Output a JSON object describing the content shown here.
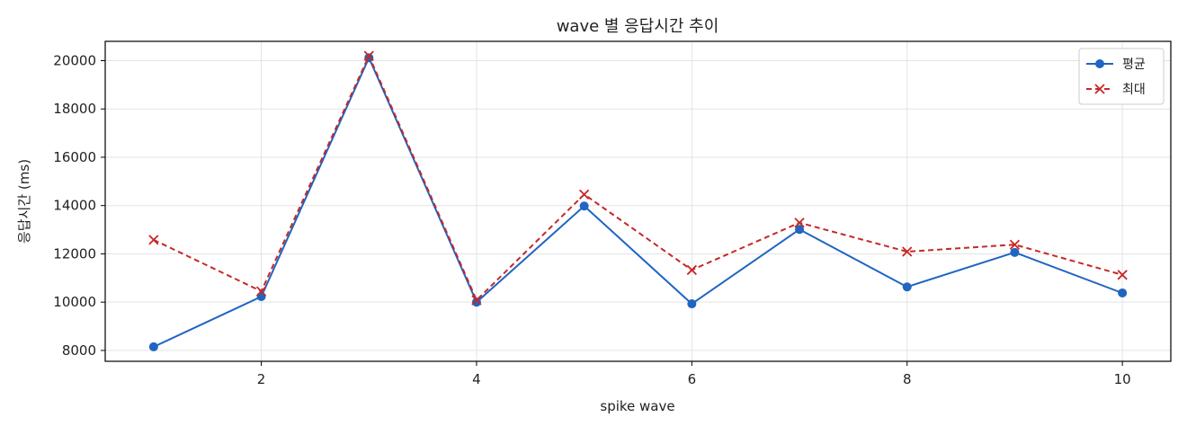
{
  "chart_data": {
    "type": "line",
    "title": "wave 별 응답시간 추이",
    "xlabel": "spike wave",
    "ylabel": "응답시간 (ms)",
    "x": [
      1,
      2,
      3,
      4,
      5,
      6,
      7,
      8,
      9,
      10
    ],
    "xlim": [
      0.55,
      10.45
    ],
    "ylim": [
      7550,
      20800
    ],
    "x_ticks": [
      2,
      4,
      6,
      8,
      10
    ],
    "y_ticks": [
      8000,
      10000,
      12000,
      14000,
      16000,
      18000,
      20000
    ],
    "grid": true,
    "legend_position": "top-right",
    "series": [
      {
        "name": "평균",
        "color": "#1f65c1",
        "line_style": "solid",
        "marker": "circle",
        "values": [
          8150,
          10230,
          20120,
          10000,
          13980,
          9930,
          13010,
          10630,
          12060,
          10380
        ]
      },
      {
        "name": "최대",
        "color": "#c62828",
        "line_style": "dashed",
        "marker": "x",
        "values": [
          12580,
          10450,
          20200,
          10080,
          14460,
          11330,
          13290,
          12090,
          12380,
          11130
        ]
      }
    ]
  }
}
